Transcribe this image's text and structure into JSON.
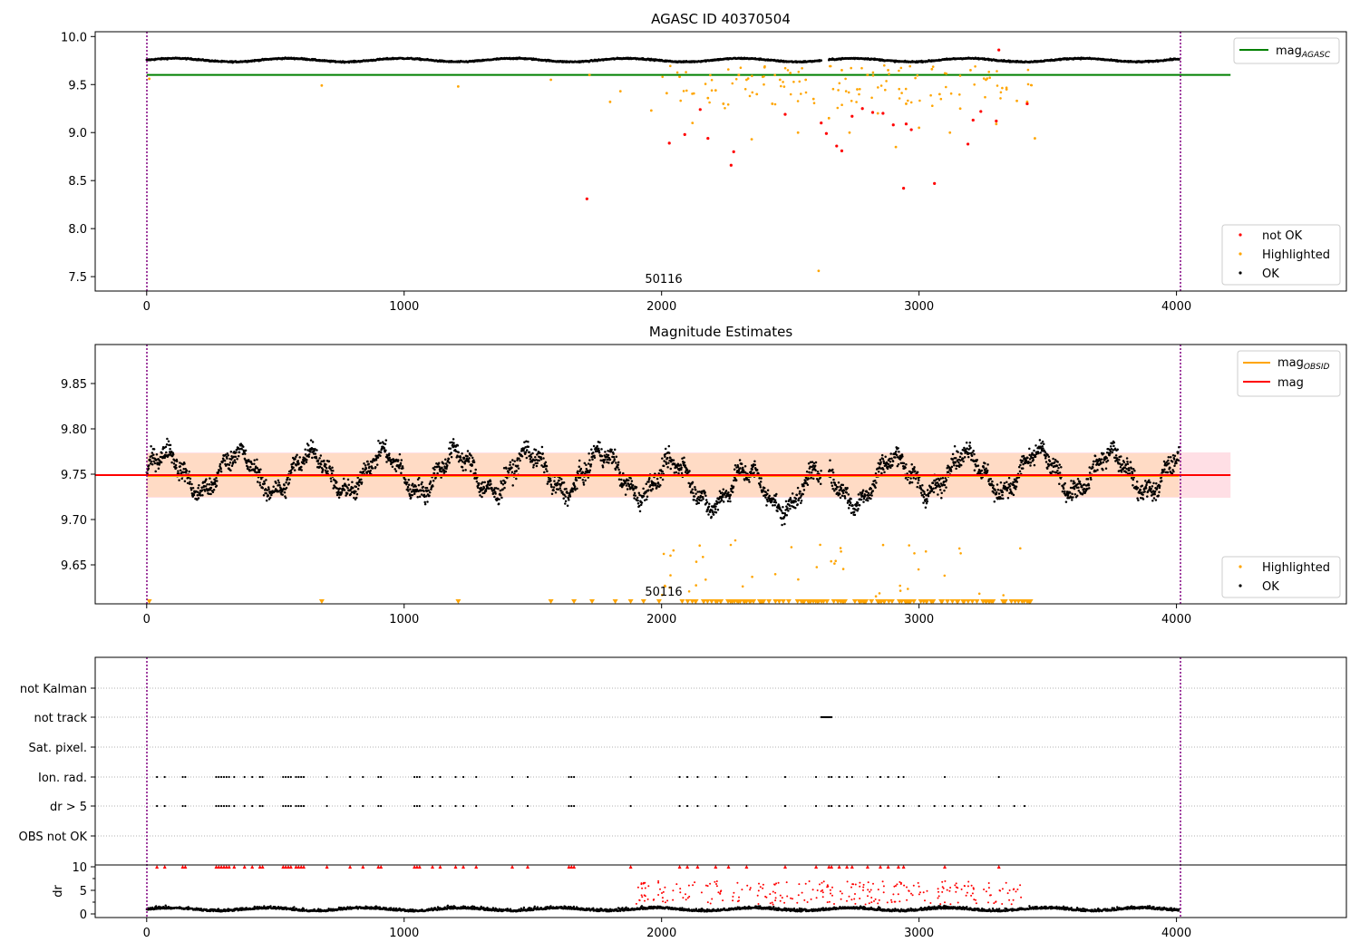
{
  "colors": {
    "ok": "#000000",
    "highlighted": "#ffa500",
    "not_ok": "#ff0000",
    "mag_agasc": "#008000",
    "mag_obsid": "#ffa500",
    "mag": "#ff0000",
    "band_outer": "#ffc0cb",
    "band_inner": "#ffdab9",
    "obs_boundary": "#800080"
  },
  "panel1": {
    "title": "AGASC ID 40370504",
    "obsid_label": "50116",
    "ylim": [
      7.35,
      10.05
    ],
    "xlim": [
      -200,
      4660
    ],
    "yticks": [
      "7.5",
      "8.0",
      "8.5",
      "9.0",
      "9.5",
      "10.0"
    ],
    "xticks": [
      "0",
      "1000",
      "2000",
      "3000",
      "4000"
    ],
    "mag_agasc": 9.6,
    "legend_top": {
      "mag_agasc": "mag",
      "mag_agasc_sub": "AGASC"
    },
    "legend_bottom": {
      "not_ok": "not OK",
      "highlighted": "Highlighted",
      "ok": "OK"
    }
  },
  "panel2": {
    "title": "Magnitude Estimates",
    "obsid_label": "50116",
    "ylim": [
      9.607,
      9.893
    ],
    "xlim": [
      -200,
      4660
    ],
    "yticks": [
      "9.65",
      "9.70",
      "9.75",
      "9.80",
      "9.85"
    ],
    "xticks": [
      "0",
      "1000",
      "2000",
      "3000",
      "4000"
    ],
    "mag": 9.749,
    "mag_obsid": 9.748,
    "band_outer": [
      9.724,
      9.774
    ],
    "band_inner": [
      9.725,
      9.773
    ],
    "legend_top": {
      "mag_obsid": "mag",
      "mag_obsid_sub": "OBSID",
      "mag": "mag"
    },
    "legend_bottom": {
      "highlighted": "Highlighted",
      "ok": "OK"
    }
  },
  "panel3": {
    "flag_labels": [
      "not Kalman",
      "not track",
      "Sat. pixel.",
      "Ion. rad.",
      "dr > 5",
      "OBS not OK"
    ],
    "dr_label": "dr",
    "dr_ticks": [
      "0",
      "5",
      "10"
    ],
    "xticks": [
      "0",
      "1000",
      "2000",
      "3000",
      "4000"
    ],
    "xlim": [
      -200,
      4660
    ]
  },
  "chart_data": [
    {
      "type": "scatter",
      "title": "AGASC ID 40370504",
      "ylim": [
        7.35,
        10.05
      ],
      "series": [
        {
          "name": "OK",
          "summary": "dense band of points near 9.75 across samples 0-4000"
        },
        {
          "name": "Highlighted",
          "x": [
            10,
            680,
            1210,
            1570,
            1720,
            1800,
            1840,
            1960,
            2020,
            2070,
            2120,
            2180,
            2210,
            2240,
            2300,
            2330,
            2350,
            2370,
            2400,
            2430,
            2460,
            2500,
            2530,
            2560,
            2590,
            2610,
            2650,
            2700,
            2730,
            2760,
            2800,
            2840,
            2880,
            2910,
            2950,
            3000,
            3050,
            3080,
            3120,
            3160,
            3200,
            3260,
            3300,
            3340,
            3380,
            3420,
            3450
          ],
          "y": [
            9.56,
            9.49,
            9.48,
            9.55,
            9.6,
            9.32,
            9.43,
            9.23,
            9.41,
            9.58,
            9.1,
            9.36,
            9.44,
            9.3,
            9.6,
            9.55,
            8.93,
            9.4,
            9.68,
            9.3,
            9.55,
            9.62,
            9.0,
            9.55,
            9.35,
            7.56,
            9.15,
            9.65,
            9.0,
            9.45,
            9.6,
            9.2,
            9.65,
            8.85,
            9.3,
            9.05,
            9.66,
            9.4,
            9.0,
            9.25,
            9.65,
            9.55,
            9.09,
            9.45,
            9.33,
            9.32,
            8.94
          ]
        },
        {
          "name": "not OK",
          "x": [
            1710,
            2030,
            2090,
            2150,
            2180,
            2270,
            2280,
            2480,
            2620,
            2640,
            2680,
            2700,
            2740,
            2780,
            2820,
            2860,
            2900,
            2940,
            2950,
            2970,
            3060,
            3190,
            3210,
            3240,
            3300,
            3310,
            3420
          ],
          "y": [
            8.31,
            8.89,
            8.98,
            9.24,
            8.94,
            8.66,
            8.8,
            9.19,
            9.1,
            8.99,
            8.86,
            8.81,
            9.17,
            9.25,
            9.21,
            9.2,
            9.08,
            8.42,
            9.09,
            9.03,
            8.47,
            8.88,
            9.13,
            9.22,
            9.12,
            9.86,
            9.3
          ]
        }
      ],
      "hlines": [
        {
          "name": "mag_AGASC",
          "y": 9.6
        }
      ]
    },
    {
      "type": "scatter",
      "title": "Magnitude Estimates",
      "ylim": [
        9.607,
        9.893
      ],
      "series": [
        {
          "name": "OK",
          "summary": "points scattered 9.68-9.81 around 9.75"
        },
        {
          "name": "Highlighted",
          "summary": "points 9.62-9.68 between samples 2000-3400 plus clipped markers at the lower edge"
        }
      ],
      "hlines": [
        {
          "name": "mag_OBSID",
          "y": 9.748
        },
        {
          "name": "mag",
          "y": 9.749
        }
      ],
      "bands": [
        [
          9.724,
          9.774
        ]
      ]
    },
    {
      "type": "scatter",
      "ylabel": "dr",
      "categories": [
        "not Kalman",
        "not track",
        "Sat. pixel.",
        "Ion. rad.",
        "dr > 5",
        "OBS not OK"
      ],
      "not_track_x_range": [
        2620,
        2660
      ],
      "ion_rad_x": [
        40,
        70,
        140,
        150,
        270,
        280,
        290,
        300,
        310,
        320,
        340,
        380,
        410,
        440,
        450,
        530,
        540,
        550,
        560,
        580,
        590,
        600,
        610,
        700,
        790,
        840,
        900,
        910,
        1040,
        1050,
        1060,
        1110,
        1140,
        1200,
        1230,
        1280,
        1420,
        1480,
        1640,
        1650,
        1660,
        1880,
        2070,
        2100,
        2140,
        2210,
        2260,
        2330,
        2480,
        2600,
        2650,
        2660,
        2690,
        2720,
        2740,
        2800,
        2850,
        2880,
        2920,
        2940,
        3100,
        3310
      ],
      "dr_ylim": [
        0,
        10
      ]
    }
  ]
}
